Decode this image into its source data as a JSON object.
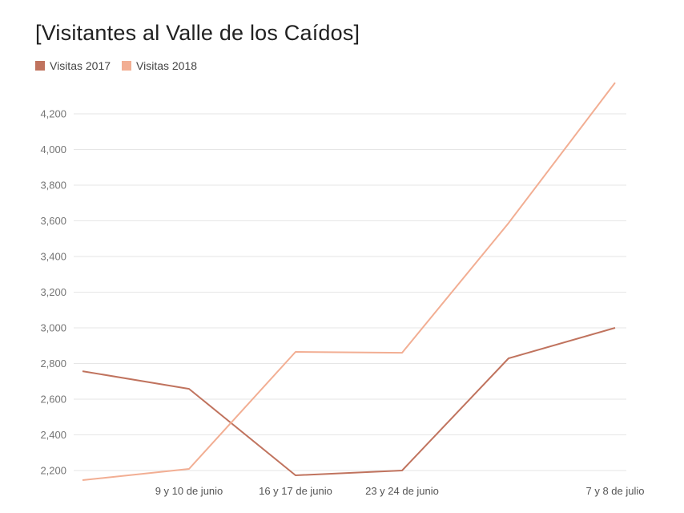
{
  "chart_data": {
    "type": "line",
    "title": "[Visitantes al Valle de los Caídos]",
    "xlabel": "",
    "ylabel": "",
    "categories": [
      "",
      "9 y 10 de junio",
      "16 y 17 de junio",
      "23 y 24 de junio",
      "",
      "7 y 8 de julio"
    ],
    "series": [
      {
        "name": "Visitas 2017",
        "color": "#c0735e",
        "values": [
          2757,
          2658,
          2173,
          2200,
          2829,
          3000
        ]
      },
      {
        "name": "Visitas 2018",
        "color": "#f2ae93",
        "values": [
          2146,
          2209,
          2865,
          2860,
          3588,
          4375
        ]
      }
    ],
    "yticks": [
      2200,
      2400,
      2600,
      2800,
      3000,
      3200,
      3400,
      3600,
      3800,
      4000,
      4200
    ],
    "ytick_labels": [
      "2,200",
      "2,400",
      "2,600",
      "2,800",
      "3,000",
      "3,200",
      "3,400",
      "3,600",
      "3,800",
      "4,000",
      "4,200"
    ],
    "ylim": [
      2200,
      4200
    ],
    "grid": true,
    "legend_position": "top-left"
  },
  "header": {
    "title": "[Visitantes al Valle de los Caídos]"
  },
  "legend": {
    "items": [
      {
        "label": "Visitas 2017",
        "color": "#c0735e"
      },
      {
        "label": "Visitas 2018",
        "color": "#f2ae93"
      }
    ]
  }
}
